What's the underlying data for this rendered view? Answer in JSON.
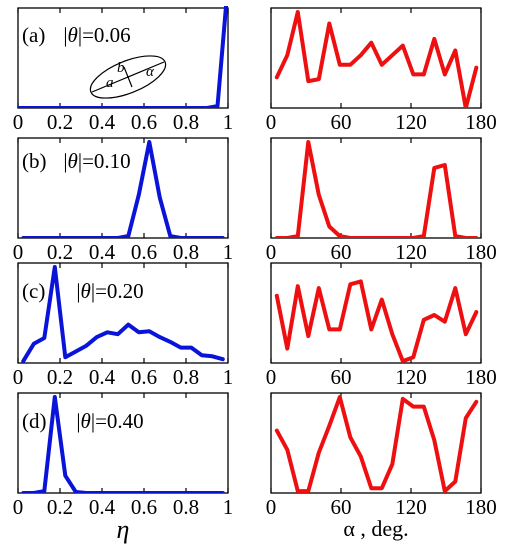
{
  "chart_data": [
    {
      "type": "line",
      "panel": "(a)",
      "theta_label": "|θ|=0.06",
      "xlabel": "η",
      "xlim": [
        0,
        1
      ],
      "ylim": [
        0,
        1
      ],
      "xticks": [
        0,
        0.2,
        0.4,
        0.6,
        0.8,
        1
      ],
      "tick_labels": [
        "0",
        "0.2",
        "0.4",
        "0.6",
        "0.8",
        "1"
      ],
      "color": "#0a14d8",
      "series": [
        {
          "x": [
            0,
            0.05,
            0.1,
            0.15,
            0.2,
            0.25,
            0.3,
            0.35,
            0.4,
            0.45,
            0.5,
            0.55,
            0.6,
            0.65,
            0.7,
            0.75,
            0.8,
            0.85,
            0.9,
            0.95,
            1.0
          ],
          "y": [
            0,
            0,
            0,
            0,
            0,
            0,
            0,
            0,
            0,
            0,
            0,
            0,
            0,
            0,
            0,
            0,
            0,
            0,
            0,
            0.02,
            1.3
          ]
        }
      ],
      "inset": {
        "a": "a",
        "b": "b",
        "alpha": "α"
      }
    },
    {
      "type": "line",
      "panel": "(a)",
      "xlabel": "α, deg.",
      "xlim": [
        0,
        180
      ],
      "ylim": [
        0,
        1
      ],
      "xticks": [
        0,
        60,
        120,
        180
      ],
      "tick_labels": [
        "0",
        "60",
        "120",
        "180"
      ],
      "color": "#ee1010",
      "series": [
        {
          "x": [
            5,
            14,
            23,
            32,
            41,
            50,
            59,
            68,
            77,
            86,
            95,
            104,
            113,
            122,
            131,
            140,
            149,
            158,
            167,
            176
          ],
          "y": [
            0.32,
            0.55,
            1.0,
            0.28,
            0.3,
            0.88,
            0.45,
            0.45,
            0.55,
            0.68,
            0.45,
            0.55,
            0.65,
            0.35,
            0.35,
            0.72,
            0.35,
            0.6,
            0.0,
            0.42
          ]
        }
      ]
    },
    {
      "type": "line",
      "panel": "(b)",
      "theta_label": "|θ|=0.10",
      "xlabel": "η",
      "xlim": [
        0,
        1
      ],
      "ylim": [
        0,
        1
      ],
      "xticks": [
        0,
        0.2,
        0.4,
        0.6,
        0.8,
        1
      ],
      "tick_labels": [
        "0",
        "0.2",
        "0.4",
        "0.6",
        "0.8",
        "1"
      ],
      "color": "#0a14d8",
      "series": [
        {
          "x": [
            0.025,
            0.075,
            0.125,
            0.175,
            0.225,
            0.275,
            0.325,
            0.375,
            0.425,
            0.475,
            0.525,
            0.575,
            0.625,
            0.675,
            0.725,
            0.775,
            0.825,
            0.875,
            0.925,
            0.975
          ],
          "y": [
            0,
            0,
            0,
            0,
            0,
            0,
            0,
            0,
            0,
            0,
            0.02,
            0.45,
            1.0,
            0.42,
            0.02,
            0,
            0,
            0,
            0,
            0
          ]
        }
      ]
    },
    {
      "type": "line",
      "panel": "(b)",
      "xlabel": "α, deg.",
      "xlim": [
        0,
        180
      ],
      "ylim": [
        0,
        1
      ],
      "xticks": [
        0,
        60,
        120,
        180
      ],
      "tick_labels": [
        "0",
        "60",
        "120",
        "180"
      ],
      "color": "#ee1010",
      "series": [
        {
          "x": [
            5,
            14,
            23,
            32,
            41,
            50,
            59,
            68,
            77,
            86,
            95,
            104,
            113,
            122,
            131,
            140,
            149,
            158,
            167,
            176
          ],
          "y": [
            0,
            0,
            0.02,
            1.0,
            0.45,
            0.12,
            0.02,
            0,
            0,
            0,
            0,
            0,
            0,
            0,
            0.02,
            0.73,
            0.76,
            0.02,
            0,
            0
          ]
        }
      ]
    },
    {
      "type": "line",
      "panel": "(c)",
      "theta_label": "|θ|=0.20",
      "xlabel": "η",
      "xlim": [
        0,
        1
      ],
      "ylim": [
        0,
        1
      ],
      "xticks": [
        0,
        0.2,
        0.4,
        0.6,
        0.8,
        1
      ],
      "tick_labels": [
        "0",
        "0.2",
        "0.4",
        "0.6",
        "0.8",
        "1"
      ],
      "color": "#0a14d8",
      "series": [
        {
          "x": [
            0.025,
            0.075,
            0.125,
            0.175,
            0.225,
            0.275,
            0.325,
            0.375,
            0.425,
            0.475,
            0.525,
            0.575,
            0.625,
            0.675,
            0.725,
            0.775,
            0.825,
            0.875,
            0.925,
            0.975
          ],
          "y": [
            0.02,
            0.2,
            0.26,
            1.0,
            0.06,
            0.12,
            0.18,
            0.27,
            0.32,
            0.3,
            0.4,
            0.32,
            0.33,
            0.27,
            0.22,
            0.16,
            0.16,
            0.08,
            0.07,
            0.04
          ]
        }
      ]
    },
    {
      "type": "line",
      "panel": "(c)",
      "xlabel": "α, deg.",
      "xlim": [
        0,
        180
      ],
      "ylim": [
        0,
        1
      ],
      "xticks": [
        0,
        60,
        120,
        180
      ],
      "tick_labels": [
        "0",
        "60",
        "120",
        "180"
      ],
      "color": "#ee1010",
      "series": [
        {
          "x": [
            5,
            14,
            23,
            32,
            41,
            50,
            59,
            68,
            77,
            86,
            95,
            104,
            113,
            122,
            131,
            140,
            149,
            158,
            167,
            176
          ],
          "y": [
            0.7,
            0.15,
            0.8,
            0.28,
            0.78,
            0.35,
            0.35,
            0.82,
            0.85,
            0.35,
            0.66,
            0.3,
            0.02,
            0.06,
            0.45,
            0.5,
            0.43,
            0.78,
            0.3,
            0.53
          ]
        }
      ]
    },
    {
      "type": "line",
      "panel": "(d)",
      "theta_label": "|θ|=0.40",
      "xlabel": "η",
      "xlim": [
        0,
        1
      ],
      "ylim": [
        0,
        1
      ],
      "xticks": [
        0,
        0.2,
        0.4,
        0.6,
        0.8,
        1
      ],
      "tick_labels": [
        "0",
        "0.2",
        "0.4",
        "0.6",
        "0.8",
        "1"
      ],
      "color": "#0a14d8",
      "series": [
        {
          "x": [
            0.025,
            0.075,
            0.125,
            0.175,
            0.225,
            0.275,
            0.325,
            0.375,
            0.425,
            0.475,
            0.525,
            0.575,
            0.625,
            0.675,
            0.725,
            0.775,
            0.825,
            0.875,
            0.925,
            0.975
          ],
          "y": [
            0,
            0,
            0.02,
            1.0,
            0.18,
            0.01,
            0,
            0,
            0,
            0,
            0,
            0,
            0,
            0,
            0,
            0,
            0,
            0,
            0,
            0
          ]
        }
      ]
    },
    {
      "type": "line",
      "panel": "(d)",
      "xlabel": "α, deg.",
      "xlim": [
        0,
        180
      ],
      "ylim": [
        0,
        1
      ],
      "xticks": [
        0,
        60,
        120,
        180
      ],
      "tick_labels": [
        "0",
        "60",
        "120",
        "180"
      ],
      "color": "#ee1010",
      "series": [
        {
          "x": [
            5,
            14,
            23,
            32,
            41,
            50,
            59,
            68,
            77,
            86,
            95,
            104,
            113,
            122,
            131,
            140,
            149,
            158,
            167,
            176
          ],
          "y": [
            0.65,
            0.45,
            0.02,
            0.02,
            0.42,
            0.7,
            1.0,
            0.58,
            0.38,
            0.05,
            0.05,
            0.3,
            0.98,
            0.9,
            0.9,
            0.55,
            0.02,
            0.12,
            0.78,
            0.95
          ]
        }
      ]
    }
  ],
  "xlabel_eta": "η",
  "xlabel_alpha": "α , deg."
}
